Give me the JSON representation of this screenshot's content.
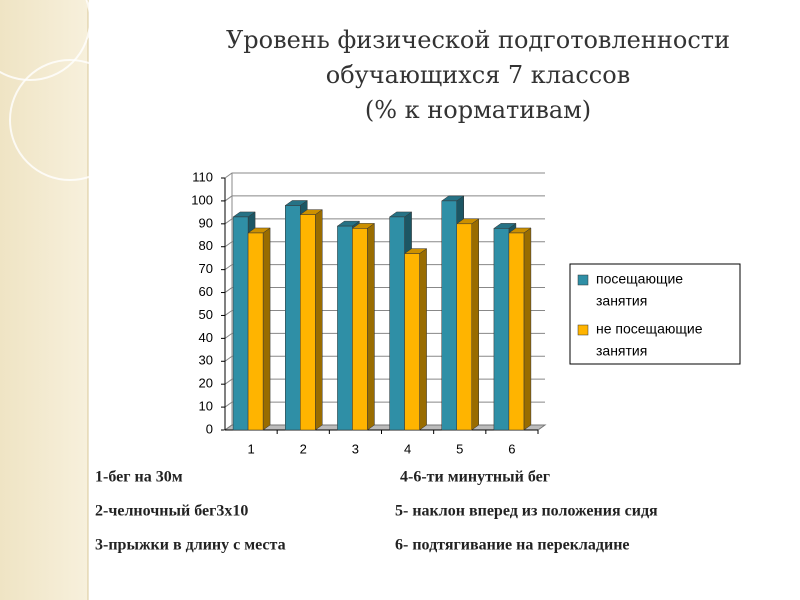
{
  "chart_data": {
    "type": "bar",
    "title_lines": [
      "Уровень физической подготовленности",
      "обучающихся 7 классов",
      "(% к нормативам)"
    ],
    "categories": [
      "1",
      "2",
      "3",
      "4",
      "5",
      "6"
    ],
    "series": [
      {
        "name": [
          "посещающие",
          "занятия"
        ],
        "color": "#2f8fa6",
        "values": [
          93,
          98,
          89,
          93,
          100,
          88
        ]
      },
      {
        "name": [
          "не посещающие",
          "занятия"
        ],
        "color": "#ffb400",
        "values": [
          86,
          94,
          88,
          77,
          90,
          86
        ]
      }
    ],
    "ylim": [
      0,
      110
    ],
    "yticks": [
      0,
      10,
      20,
      30,
      40,
      50,
      60,
      70,
      80,
      90,
      100,
      110
    ],
    "grid": true,
    "legend": "right",
    "notes": [
      "1-бег на 30м",
      "4-6-ти минутный бег",
      "2-челночный бег3х10",
      "5- наклон вперед из положения сидя",
      "3-прыжки в длину с места",
      "6- подтягивание на перекладине"
    ]
  }
}
